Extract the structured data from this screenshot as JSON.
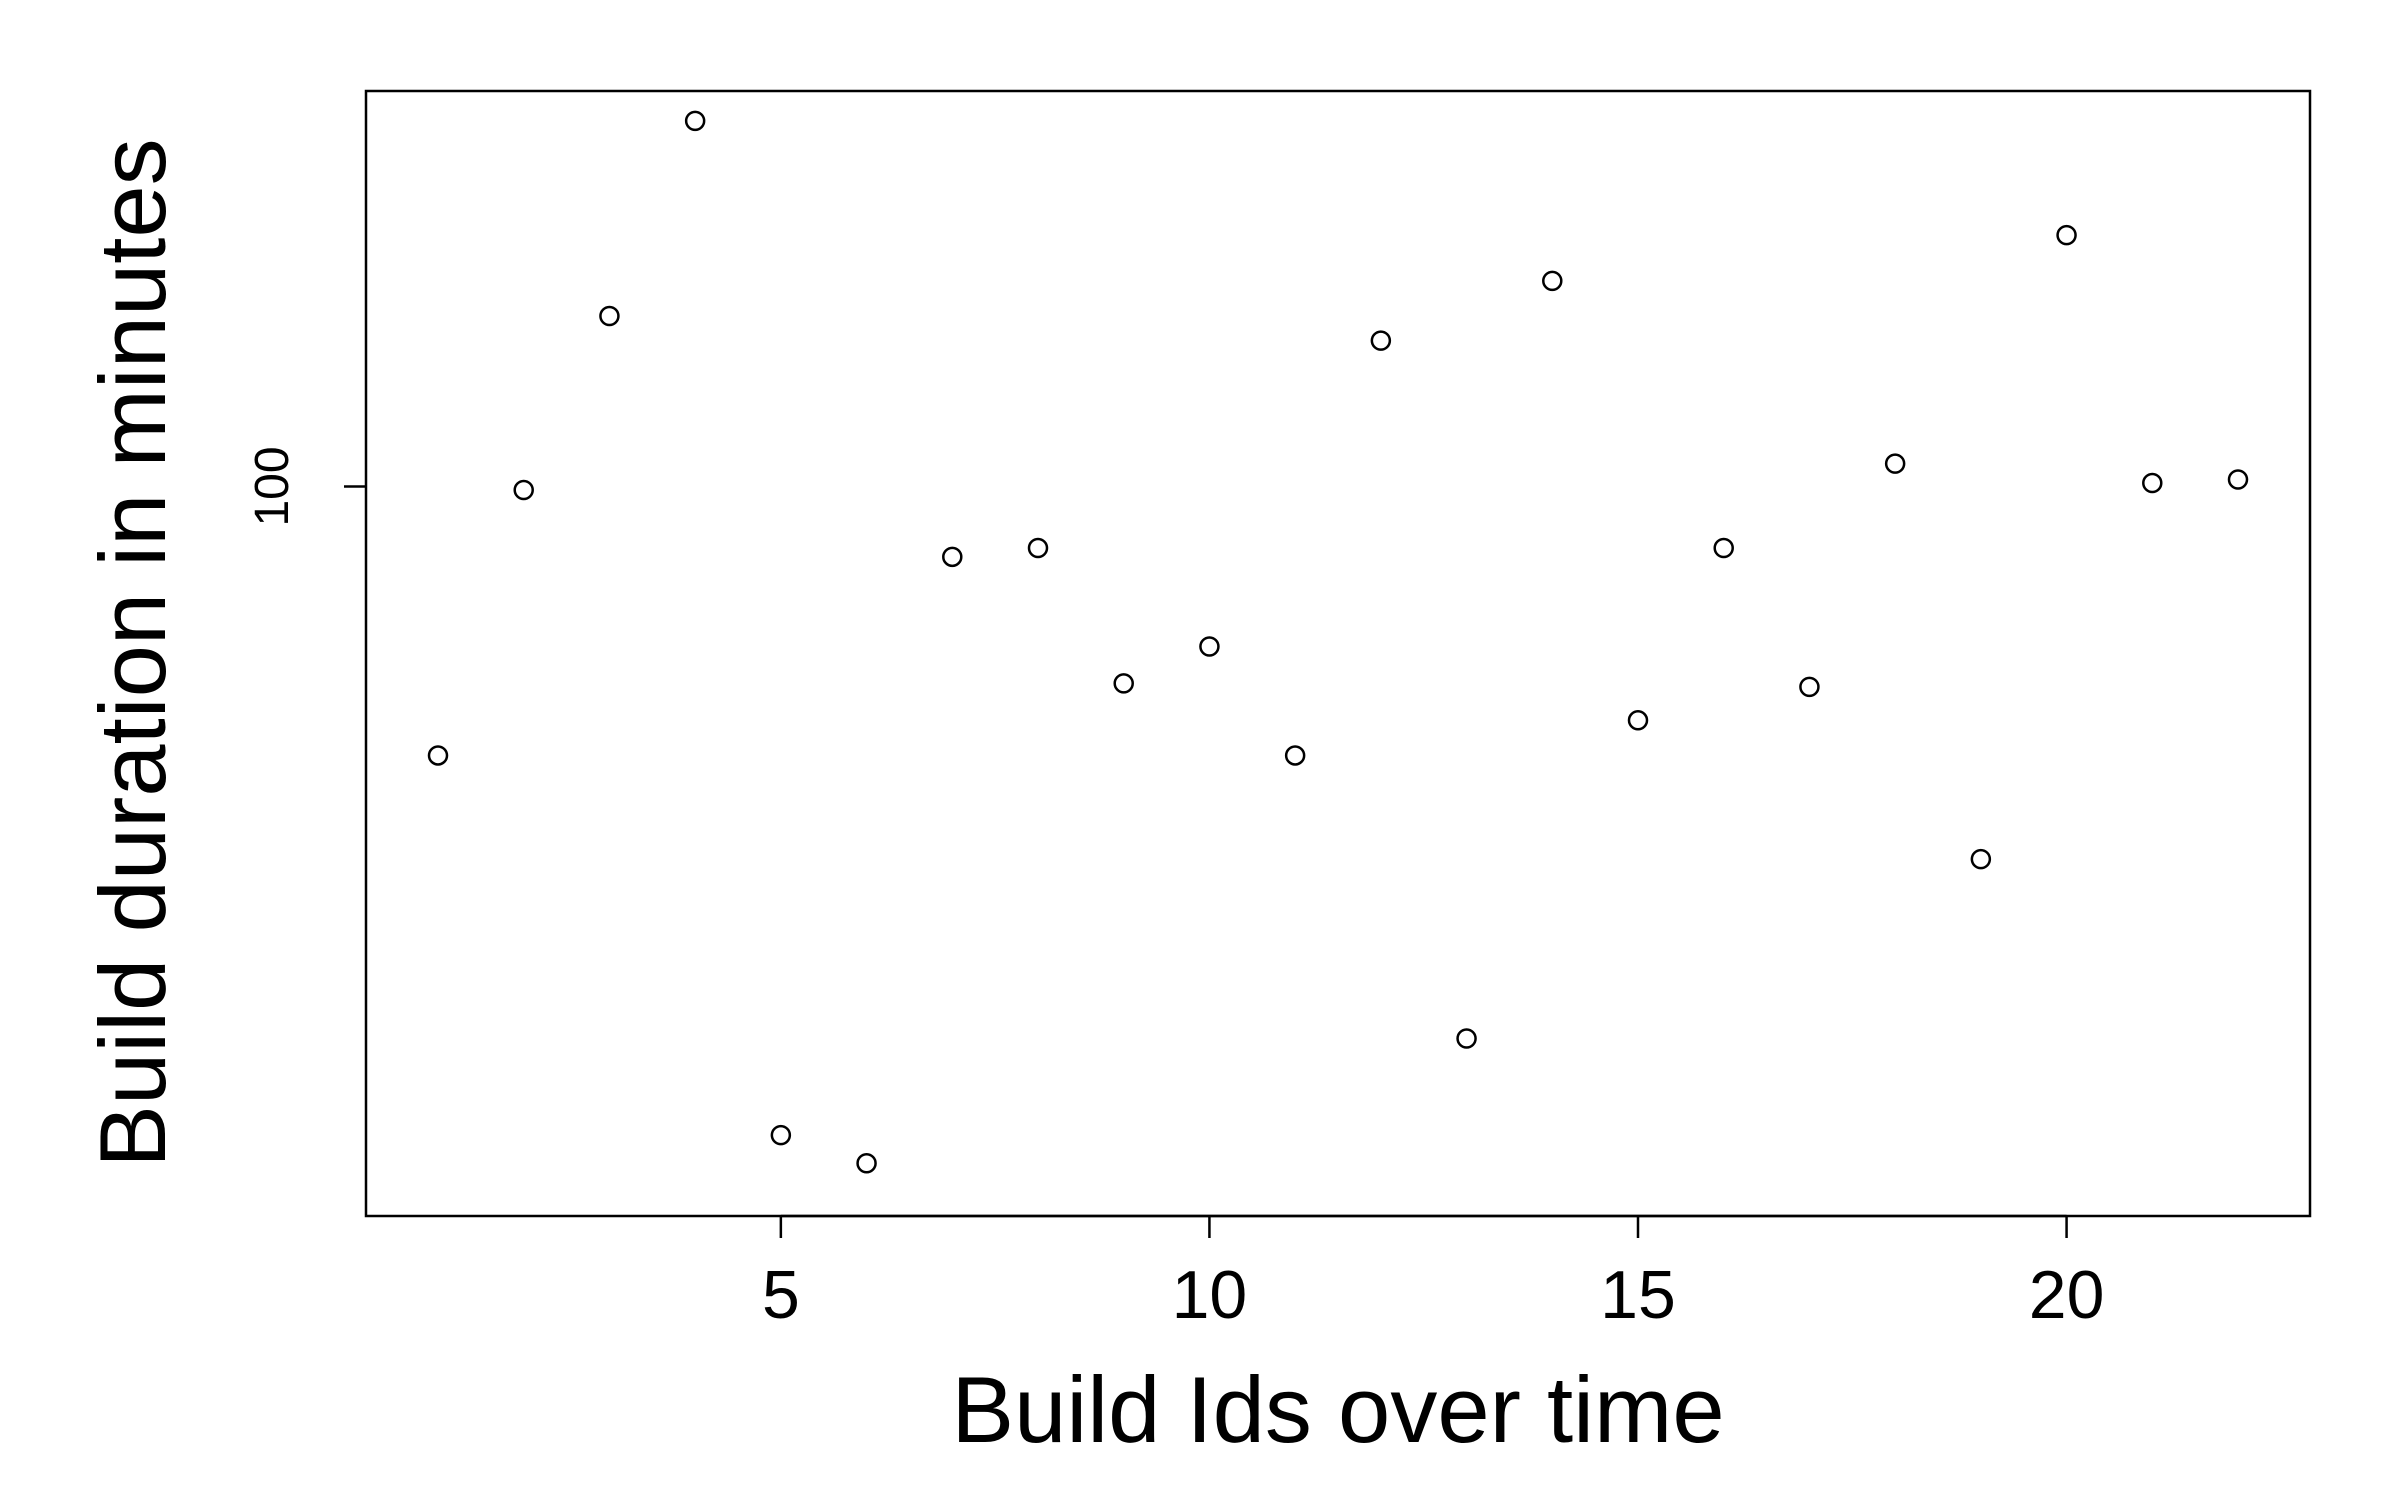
{
  "chart_data": {
    "type": "scatter",
    "title": "",
    "xlabel": "Build Ids over time",
    "ylabel": "Build duration in minutes",
    "x_ticks": [
      5,
      10,
      15,
      20
    ],
    "y_ticks": [
      100
    ],
    "xlim": [
      0.16,
      22.84
    ],
    "ylim": [
      58.5,
      122.5
    ],
    "y_scale": "linear",
    "grid": false,
    "legend": "none",
    "marker": "open-circle",
    "colors": {
      "point_stroke": "#000000",
      "axis": "#000000",
      "background": "#ffffff"
    },
    "points": [
      {
        "x": 1,
        "y": 84.7
      },
      {
        "x": 2,
        "y": 99.8
      },
      {
        "x": 3,
        "y": 109.7
      },
      {
        "x": 4,
        "y": 120.8
      },
      {
        "x": 5,
        "y": 63.1
      },
      {
        "x": 6,
        "y": 61.5
      },
      {
        "x": 7,
        "y": 96.0
      },
      {
        "x": 8,
        "y": 96.5
      },
      {
        "x": 9,
        "y": 88.8
      },
      {
        "x": 10,
        "y": 90.9
      },
      {
        "x": 11,
        "y": 84.7
      },
      {
        "x": 12,
        "y": 108.3
      },
      {
        "x": 13,
        "y": 68.6
      },
      {
        "x": 14,
        "y": 111.7
      },
      {
        "x": 15,
        "y": 86.7
      },
      {
        "x": 16,
        "y": 96.5
      },
      {
        "x": 17,
        "y": 88.6
      },
      {
        "x": 18,
        "y": 101.3
      },
      {
        "x": 19,
        "y": 78.8
      },
      {
        "x": 20,
        "y": 114.3
      },
      {
        "x": 21,
        "y": 100.2
      },
      {
        "x": 22,
        "y": 100.4
      }
    ]
  }
}
